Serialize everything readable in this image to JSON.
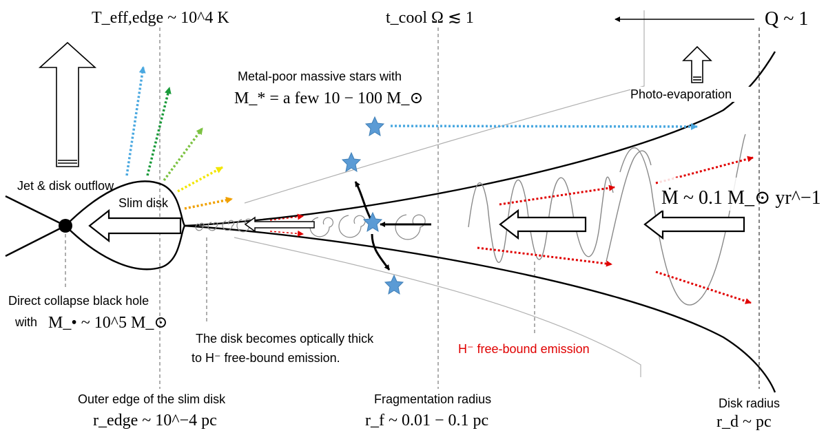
{
  "labels": {
    "t_eff_edge": "T_eff,edge ~ 10^4 K",
    "t_cool": "t_cool Ω ≲ 1",
    "q_param": "Q ~ 1",
    "metal_poor_title": "Metal-poor massive stars with",
    "metal_poor_mass": "M_* = a few 10 − 100 M_⊙",
    "photo_evaporation": "Photo-evaporation",
    "jet_outflow": "Jet & disk outflow",
    "slim_disk": "Slim disk",
    "mdot": "Ṁ ~ 0.1 M_⊙ yr^−1",
    "dcbh_line1": "Direct collapse black hole",
    "dcbh_line2_prefix": "with",
    "dcbh_mass": "M_• ~ 10^5 M_⊙",
    "optically_thick_line1": "The disk becomes optically thick",
    "optically_thick_line2": "to H⁻ free-bound emission.",
    "hminus_emission": "H⁻ free-bound emission",
    "outer_edge": "Outer edge of the slim disk",
    "r_edge": "r_edge ~ 10^−4 pc",
    "frag_radius": "Fragmentation radius",
    "r_f": "r_f ~ 0.01 − 0.1 pc",
    "disk_radius": "Disk radius",
    "r_d": "r_d ~ pc"
  },
  "colors": {
    "ink": "#000000",
    "emission_red": "#e00000",
    "star_blue": "#5b9bd5",
    "dot_blue": "#4aa8e0",
    "dot_green": "#1a9a3a",
    "dot_lightgreen": "#7cc242",
    "dot_yellow": "#f2e600",
    "dot_orange": "#f0a000",
    "wave_gray": "#888888"
  },
  "icons": {
    "black_hole": "filled-circle",
    "stars": "five-point-star"
  }
}
